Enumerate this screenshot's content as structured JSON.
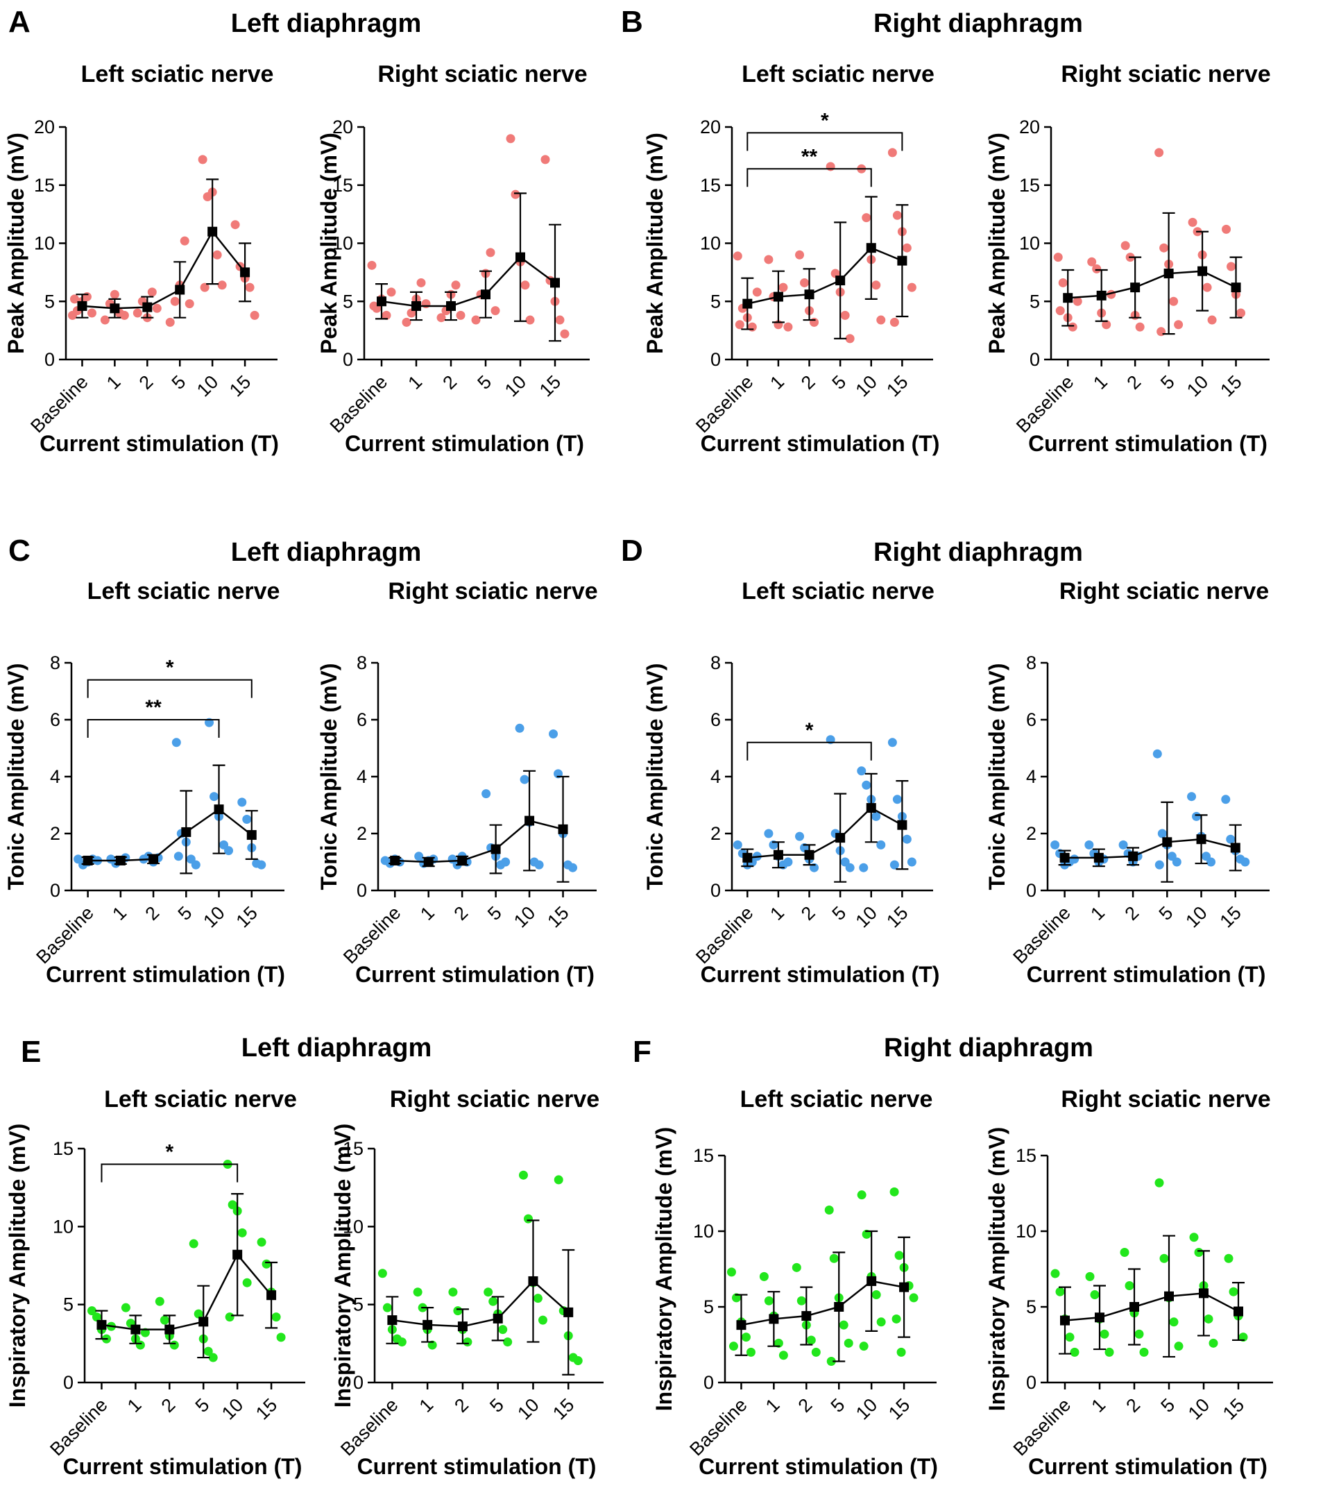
{
  "colors": {
    "peak": "#f07a78",
    "tonic": "#4b9fe8",
    "inspiratory": "#22e61c",
    "mean": "#000000"
  },
  "categories": [
    "Baseline",
    "1",
    "2",
    "5",
    "10",
    "15"
  ],
  "panels": [
    {
      "letter": "A",
      "title": "Left diaphragm",
      "metric": "peak",
      "charts": [
        {
          "subtitle": "Left sciatic nerve",
          "ylabel": "Peak Amplitude (mV)",
          "xlabel": "Current stimulation (T)",
          "ylim": [
            0,
            20
          ],
          "yticks": [
            0,
            5,
            10,
            15,
            20
          ],
          "mean": [
            4.6,
            4.4,
            4.5,
            6.0,
            11.0,
            7.5
          ],
          "err": [
            1.0,
            0.8,
            0.9,
            2.4,
            4.5,
            2.5
          ],
          "points": [
            [
              3.8,
              4.2,
              5.0,
              5.4,
              4.0,
              5.2
            ],
            [
              3.4,
              4.8,
              5.6,
              4.0,
              3.8
            ],
            [
              4.0,
              5.0,
              3.6,
              5.8,
              4.4
            ],
            [
              3.2,
              5.0,
              6.4,
              10.2,
              4.8
            ],
            [
              17.2,
              14.0,
              14.4,
              9.0,
              6.4,
              6.2
            ],
            [
              11.6,
              8.0,
              7.0,
              6.2,
              3.8
            ]
          ],
          "sig": []
        },
        {
          "subtitle": "Right sciatic nerve",
          "ylabel": "Peak Amplitude (mV)",
          "xlabel": "Current stimulation (T)",
          "ylim": [
            0,
            20
          ],
          "yticks": [
            0,
            5,
            10,
            15,
            20
          ],
          "mean": [
            5.0,
            4.6,
            4.6,
            5.6,
            8.8,
            6.6
          ],
          "err": [
            1.5,
            1.2,
            1.2,
            2.0,
            5.5,
            5.0
          ],
          "points": [
            [
              8.1,
              4.4,
              5.2,
              3.8,
              5.8,
              4.6
            ],
            [
              3.2,
              4.0,
              5.2,
              6.6,
              4.8
            ],
            [
              3.6,
              4.2,
              5.6,
              6.4,
              3.8
            ],
            [
              3.4,
              5.6,
              7.4,
              9.2,
              4.2
            ],
            [
              19.0,
              14.2,
              8.4,
              6.4,
              3.4
            ],
            [
              17.2,
              6.8,
              5.0,
              3.4,
              2.2
            ]
          ],
          "sig": []
        }
      ]
    },
    {
      "letter": "B",
      "title": "Right diaphragm",
      "metric": "peak",
      "charts": [
        {
          "subtitle": "Left sciatic nerve",
          "ylabel": "Peak Amplitude (mV)",
          "xlabel": "Current stimulation (T)",
          "ylim": [
            0,
            20
          ],
          "yticks": [
            0,
            5,
            10,
            15,
            20
          ],
          "mean": [
            4.8,
            5.4,
            5.6,
            6.8,
            9.6,
            8.5
          ],
          "err": [
            2.2,
            2.2,
            2.2,
            5.0,
            4.4,
            4.8
          ],
          "points": [
            [
              8.9,
              4.4,
              3.6,
              2.8,
              5.8,
              3.0
            ],
            [
              8.6,
              5.4,
              3.0,
              6.2,
              2.8
            ],
            [
              9.0,
              6.6,
              4.2,
              3.2
            ],
            [
              16.6,
              7.4,
              5.8,
              3.8,
              1.8
            ],
            [
              16.4,
              12.2,
              8.6,
              6.4,
              3.4
            ],
            [
              17.8,
              12.4,
              11.0,
              9.6,
              6.2,
              3.2
            ]
          ],
          "sig": [
            {
              "text": "**",
              "from": 0,
              "to": 4,
              "y": 16.4
            },
            {
              "text": "*",
              "from": 0,
              "to": 5,
              "y": 19.5
            }
          ]
        },
        {
          "subtitle": "Right sciatic nerve",
          "ylabel": "Peak Amplitude (mV)",
          "xlabel": "Current stimulation (T)",
          "ylim": [
            0,
            20
          ],
          "yticks": [
            0,
            5,
            10,
            15,
            20
          ],
          "mean": [
            5.3,
            5.5,
            6.2,
            7.4,
            7.6,
            6.2
          ],
          "err": [
            2.4,
            2.2,
            2.6,
            5.2,
            3.4,
            2.6
          ],
          "points": [
            [
              8.8,
              6.6,
              3.6,
              2.8,
              5.0,
              4.2
            ],
            [
              8.4,
              7.8,
              4.0,
              3.0,
              5.6
            ],
            [
              9.8,
              8.8,
              3.8,
              2.8
            ],
            [
              17.8,
              9.6,
              8.2,
              5.0,
              3.0,
              2.4
            ],
            [
              11.8,
              11.0,
              9.0,
              6.2,
              3.4
            ],
            [
              11.2,
              8.0,
              5.6,
              4.0
            ]
          ],
          "sig": []
        }
      ]
    },
    {
      "letter": "C",
      "title": "Left diaphragm",
      "metric": "tonic",
      "charts": [
        {
          "subtitle": "Left sciatic nerve",
          "ylabel": "Tonic Amplitude (mV)",
          "xlabel": "Current stimulation (T)",
          "ylim": [
            0,
            8
          ],
          "yticks": [
            0,
            2,
            4,
            6,
            8
          ],
          "mean": [
            1.05,
            1.05,
            1.1,
            2.05,
            2.85,
            1.95
          ],
          "err": [
            0.12,
            0.12,
            0.15,
            1.45,
            1.55,
            0.85
          ],
          "points": [
            [
              1.1,
              0.9,
              1.0,
              1.1,
              1.05
            ],
            [
              1.1,
              0.95,
              1.05,
              1.15
            ],
            [
              1.1,
              1.2,
              1.0,
              1.15
            ],
            [
              5.2,
              2.0,
              1.7,
              1.1,
              0.9,
              1.2
            ],
            [
              5.9,
              3.3,
              2.6,
              1.6,
              1.4
            ],
            [
              3.1,
              2.5,
              1.5,
              0.95,
              0.9
            ]
          ],
          "sig": [
            {
              "text": "**",
              "from": 0,
              "to": 4,
              "y": 6.0
            },
            {
              "text": "*",
              "from": 0,
              "to": 5,
              "y": 7.4
            }
          ]
        },
        {
          "subtitle": "Right sciatic nerve",
          "ylabel": "Tonic Amplitude (mV)",
          "xlabel": "Current stimulation (T)",
          "ylim": [
            0,
            8
          ],
          "yticks": [
            0,
            2,
            4,
            6,
            8
          ],
          "mean": [
            1.05,
            1.0,
            1.05,
            1.45,
            2.45,
            2.15
          ],
          "err": [
            0.1,
            0.15,
            0.15,
            0.85,
            1.75,
            1.85
          ],
          "points": [
            [
              1.05,
              0.95,
              1.1,
              1.0
            ],
            [
              1.2,
              0.95,
              1.05,
              1.1
            ],
            [
              1.1,
              0.9,
              1.2,
              1.0
            ],
            [
              3.4,
              1.5,
              1.2,
              0.9,
              1.0
            ],
            [
              5.7,
              3.9,
              2.4,
              1.0,
              0.9
            ],
            [
              5.5,
              4.1,
              2.0,
              0.9,
              0.8
            ]
          ],
          "sig": []
        }
      ]
    },
    {
      "letter": "D",
      "title": "Right diaphragm",
      "metric": "tonic",
      "charts": [
        {
          "subtitle": "Left sciatic nerve",
          "ylabel": "Tonic Amplitude (mV)",
          "xlabel": "Current stimulation (T)",
          "ylim": [
            0,
            8
          ],
          "yticks": [
            0,
            2,
            4,
            6,
            8
          ],
          "mean": [
            1.15,
            1.25,
            1.25,
            1.85,
            2.9,
            2.3
          ],
          "err": [
            0.3,
            0.45,
            0.35,
            1.55,
            1.2,
            1.55
          ],
          "points": [
            [
              1.6,
              1.3,
              0.9,
              1.0,
              1.2
            ],
            [
              2.0,
              1.6,
              1.2,
              0.9,
              1.0
            ],
            [
              1.9,
              1.5,
              1.1,
              0.8
            ],
            [
              5.3,
              2.0,
              1.4,
              1.0,
              0.8
            ],
            [
              4.2,
              3.7,
              3.2,
              2.6,
              1.6,
              0.8
            ],
            [
              5.2,
              3.2,
              2.6,
              1.8,
              1.0,
              0.9
            ]
          ],
          "sig": [
            {
              "text": "*",
              "from": 0,
              "to": 4,
              "y": 5.2
            }
          ]
        },
        {
          "subtitle": "Right sciatic nerve",
          "ylabel": "Tonic Amplitude (mV)",
          "xlabel": "Current stimulation (T)",
          "ylim": [
            0,
            8
          ],
          "yticks": [
            0,
            2,
            4,
            6,
            8
          ],
          "mean": [
            1.15,
            1.15,
            1.2,
            1.7,
            1.8,
            1.5
          ],
          "err": [
            0.25,
            0.3,
            0.3,
            1.4,
            0.85,
            0.8
          ],
          "points": [
            [
              1.6,
              1.3,
              0.9,
              1.0,
              1.1
            ],
            [
              1.6,
              1.3,
              1.0,
              1.1
            ],
            [
              1.6,
              1.3,
              1.0,
              1.2
            ],
            [
              4.8,
              2.0,
              1.6,
              1.2,
              1.0,
              0.9
            ],
            [
              3.3,
              2.6,
              1.9,
              1.2,
              1.0
            ],
            [
              3.2,
              1.8,
              1.4,
              1.1,
              1.0
            ]
          ],
          "sig": []
        }
      ]
    },
    {
      "letter": "E",
      "title": "Left diaphragm",
      "metric": "inspiratory",
      "charts": [
        {
          "subtitle": "Left sciatic nerve",
          "ylabel": "Inspiratory Amplitude (mV)",
          "xlabel": "Current stimulation (T)",
          "ylim": [
            0,
            15
          ],
          "yticks": [
            0,
            5,
            10,
            15
          ],
          "mean": [
            3.7,
            3.4,
            3.4,
            3.9,
            8.2,
            5.6
          ],
          "err": [
            0.9,
            0.9,
            0.9,
            2.3,
            3.9,
            2.1
          ],
          "points": [
            [
              4.6,
              4.2,
              3.4,
              2.8,
              3.6
            ],
            [
              4.8,
              3.8,
              2.8,
              2.4,
              3.2
            ],
            [
              5.2,
              4.0,
              3.0,
              2.4
            ],
            [
              8.9,
              4.4,
              2.8,
              2.0,
              1.6
            ],
            [
              14.0,
              11.4,
              11.0,
              9.6,
              6.4,
              4.2
            ],
            [
              9.0,
              7.6,
              5.8,
              4.2,
              2.9
            ]
          ],
          "sig": [
            {
              "text": "*",
              "from": 0,
              "to": 4,
              "y": 14.0
            }
          ]
        },
        {
          "subtitle": "Right sciatic nerve",
          "ylabel": "Inspiratory Amplitude (mV)",
          "xlabel": "Current stimulation (T)",
          "ylim": [
            0,
            15
          ],
          "yticks": [
            0,
            5,
            10,
            15
          ],
          "mean": [
            4.0,
            3.7,
            3.6,
            4.1,
            6.5,
            4.5
          ],
          "err": [
            1.5,
            1.1,
            1.1,
            1.4,
            3.9,
            4.0
          ],
          "points": [
            [
              7.0,
              4.8,
              3.4,
              2.8,
              2.6
            ],
            [
              5.8,
              4.8,
              3.4,
              2.4
            ],
            [
              5.8,
              4.6,
              3.4,
              2.6
            ],
            [
              5.8,
              5.2,
              4.4,
              3.4,
              2.6
            ],
            [
              13.3,
              10.5,
              6.4,
              5.4,
              4.0
            ],
            [
              13.0,
              4.6,
              3.0,
              1.6,
              1.4
            ]
          ],
          "sig": []
        }
      ]
    },
    {
      "letter": "F",
      "title": "Right diaphragm",
      "metric": "inspiratory",
      "charts": [
        {
          "subtitle": "Left sciatic nerve",
          "ylabel": "Inspiratory Amplitude (mV)",
          "xlabel": "Current stimulation (T)",
          "ylim": [
            0,
            15
          ],
          "yticks": [
            0,
            5,
            10,
            15
          ],
          "mean": [
            3.8,
            4.2,
            4.4,
            5.0,
            6.7,
            6.3
          ],
          "err": [
            2.0,
            1.8,
            1.9,
            3.6,
            3.3,
            3.3
          ],
          "points": [
            [
              7.3,
              5.6,
              4.0,
              3.0,
              2.0,
              2.4
            ],
            [
              7.0,
              5.4,
              4.4,
              2.6,
              1.8
            ],
            [
              7.6,
              5.4,
              3.8,
              2.8,
              2.0
            ],
            [
              11.4,
              8.2,
              5.6,
              3.8,
              2.6,
              1.4
            ],
            [
              12.4,
              9.8,
              7.0,
              5.8,
              4.0,
              2.4
            ],
            [
              12.6,
              8.4,
              7.6,
              6.4,
              5.6,
              4.2,
              2.0
            ]
          ],
          "sig": []
        },
        {
          "subtitle": "Right sciatic nerve",
          "ylabel": "Inspiratory Amplitude (mV)",
          "xlabel": "Current stimulation (T)",
          "ylim": [
            0,
            15
          ],
          "yticks": [
            0,
            5,
            10,
            15
          ],
          "mean": [
            4.1,
            4.3,
            5.0,
            5.7,
            5.9,
            4.7
          ],
          "err": [
            2.2,
            2.1,
            2.5,
            4.0,
            2.8,
            1.9
          ],
          "points": [
            [
              7.2,
              6.0,
              4.2,
              3.0,
              2.0
            ],
            [
              7.0,
              5.8,
              4.2,
              3.2,
              2.0
            ],
            [
              8.6,
              6.4,
              4.6,
              3.2,
              2.0
            ],
            [
              13.2,
              8.2,
              5.6,
              4.0,
              2.4
            ],
            [
              9.6,
              8.6,
              6.4,
              4.2,
              2.6
            ],
            [
              8.2,
              6.0,
              4.4,
              3.0
            ]
          ],
          "sig": []
        }
      ]
    }
  ]
}
